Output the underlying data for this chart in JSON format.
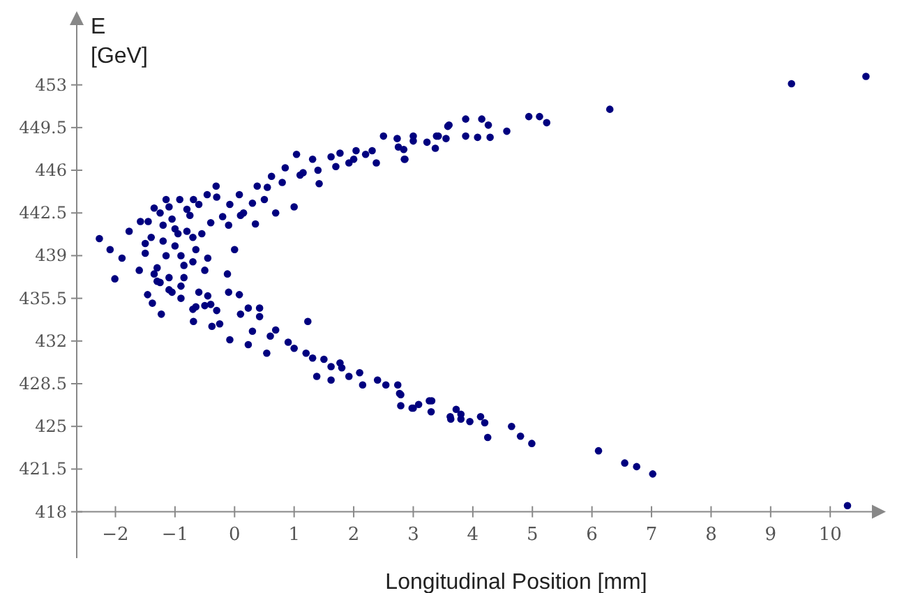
{
  "chart_data": {
    "type": "scatter",
    "xlabel": "Longitudinal Position [mm]",
    "ylabel": "E\n[GeV]",
    "xlim": [
      -2.65,
      10.7
    ],
    "ylim": [
      414.2,
      457.9
    ],
    "xticks": [
      -2,
      -1,
      0,
      1,
      2,
      3,
      4,
      5,
      6,
      7,
      8,
      9,
      10
    ],
    "yticks": [
      418,
      421.5,
      425,
      428.5,
      432,
      435.5,
      439,
      442.5,
      446,
      449.5,
      453
    ],
    "marker": "circle",
    "grid": false,
    "series": [
      {
        "color": "#00007f",
        "x": [
          9.35,
          10.6,
          10.29,
          7.02,
          6.75,
          6.55,
          6.11,
          4.99,
          4.8,
          4.65,
          4.25,
          4.2,
          4.13,
          3.95,
          3.8,
          3.8,
          3.72,
          3.63,
          3.3,
          3.27,
          3.09,
          2.98,
          2.79,
          2.79,
          2.74,
          6.3,
          5.24,
          5.12,
          4.94,
          4.57,
          4.29,
          4.26,
          4.15,
          4.08,
          3.88,
          3.88,
          3.6,
          3.55,
          3.42,
          3.37,
          3.23,
          3.0,
          2.84,
          2.86,
          2.75,
          -2.27,
          -2.09,
          -2.01,
          -1.89,
          -1.77,
          -1.58,
          1.0,
          1.04,
          1.31,
          1.62,
          1.77,
          2.04,
          2.31,
          2.5,
          2.73,
          2.85,
          3.0,
          3.39,
          3.58,
          2.38,
          1.92,
          1.42,
          1.15,
          0.85,
          0.62,
          0.38,
          0.5,
          0.08,
          0.15,
          -0.08,
          -0.31,
          -0.46,
          -0.69,
          -0.92,
          -1.15,
          -1.35,
          0.0,
          0.35,
          0.69,
          -0.12,
          0.08,
          0.42,
          0.42,
          0.23,
          1.23,
          0.69,
          1.0,
          1.31,
          1.62,
          1.77,
          1.92,
          2.15,
          2.54,
          2.77,
          3.0,
          3.31,
          3.62,
          1.38,
          1.62,
          0.54,
          0.23,
          -0.08,
          -0.38,
          -0.69,
          -1.23,
          -1.38,
          -1.46,
          -1.5,
          -1.4,
          -1.3,
          -1.2,
          -1.1,
          -1.0,
          -0.9,
          -0.8,
          -0.7,
          -0.6,
          -0.5,
          -0.4,
          -0.3,
          -1.45,
          -1.35,
          -1.25,
          -1.15,
          -1.05,
          -0.95,
          -0.85,
          -0.75,
          -0.65,
          -0.55,
          -0.45,
          -1.6,
          -1.3,
          -1.1,
          -0.9,
          -0.7,
          -0.5,
          -1.2,
          -1.0,
          -0.8,
          -0.6,
          -0.4,
          -0.2,
          -1.25,
          -1.05,
          -0.85,
          -0.65,
          -0.45,
          -0.25,
          -1.5,
          -1.1,
          -0.9,
          -0.7,
          -0.3,
          -0.1,
          0.1,
          0.3,
          0.55,
          0.8,
          1.1,
          1.4,
          1.7,
          2.0,
          2.2,
          -0.1,
          0.1,
          0.3,
          0.6,
          0.9,
          1.2,
          1.5,
          1.8,
          2.1,
          2.4
        ],
        "values": [
          453.1,
          453.7,
          418.5,
          421.1,
          421.7,
          422.0,
          423.0,
          423.6,
          424.2,
          425.0,
          424.1,
          425.3,
          425.8,
          425.4,
          425.6,
          426.0,
          426.4,
          425.6,
          426.2,
          427.1,
          426.8,
          426.5,
          426.7,
          427.6,
          428.4,
          451.0,
          449.9,
          450.4,
          450.4,
          449.2,
          448.7,
          449.7,
          450.2,
          448.7,
          450.2,
          448.8,
          449.7,
          448.6,
          448.8,
          447.8,
          448.3,
          448.8,
          447.7,
          446.9,
          447.9,
          440.4,
          439.5,
          437.1,
          438.8,
          441.0,
          441.8,
          443.0,
          447.3,
          446.9,
          447.1,
          447.4,
          447.6,
          447.6,
          448.8,
          448.6,
          446.9,
          448.4,
          448.8,
          449.6,
          446.6,
          446.6,
          444.9,
          445.8,
          446.2,
          445.5,
          444.7,
          443.6,
          444.0,
          442.5,
          443.2,
          444.7,
          444.0,
          443.6,
          443.6,
          443.6,
          442.9,
          439.5,
          441.6,
          442.5,
          437.5,
          435.8,
          434.7,
          434.0,
          434.7,
          433.6,
          432.9,
          431.4,
          430.6,
          429.9,
          430.2,
          429.1,
          428.4,
          428.4,
          427.7,
          426.5,
          427.1,
          425.8,
          429.1,
          428.8,
          431.0,
          431.7,
          432.1,
          433.2,
          433.6,
          434.2,
          435.1,
          435.8,
          439.2,
          440.5,
          438.0,
          441.5,
          437.2,
          439.8,
          436.5,
          441.0,
          438.5,
          436.0,
          437.8,
          435.0,
          434.5,
          441.8,
          437.5,
          442.5,
          439.0,
          442.0,
          440.8,
          438.2,
          442.3,
          439.5,
          440.8,
          438.8,
          437.8,
          436.9,
          436.2,
          435.5,
          434.6,
          434.9,
          440.2,
          441.2,
          442.8,
          443.2,
          441.7,
          442.2,
          436.8,
          436.0,
          437.2,
          434.8,
          435.7,
          433.4,
          440.0,
          443.0,
          439.0,
          440.5,
          443.8,
          441.5,
          442.3,
          443.3,
          444.6,
          445.0,
          445.6,
          446.0,
          446.3,
          446.9,
          447.3,
          436.0,
          434.2,
          432.8,
          432.4,
          431.9,
          431.0,
          430.5,
          429.8,
          429.4,
          428.8
        ]
      }
    ]
  }
}
